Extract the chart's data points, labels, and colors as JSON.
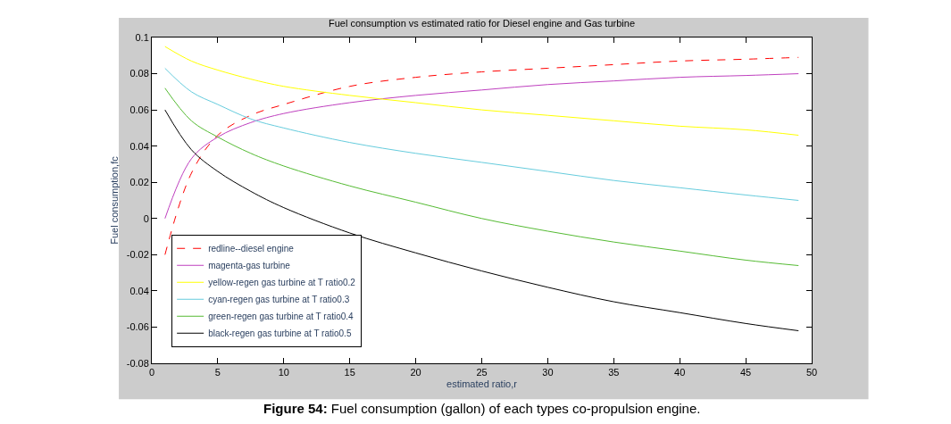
{
  "chart_data": {
    "type": "line",
    "title": "Fuel consumption vs estimated ratio for Diesel engine and Gas turbine",
    "xlabel": "estimated ratio,r",
    "ylabel": "Fuel consumption,fc",
    "x": [
      1,
      3,
      5,
      7.5,
      10,
      15,
      20,
      25,
      30,
      35,
      40,
      45,
      49
    ],
    "series": [
      {
        "name": "redline--diesel engine",
        "color": "#ff0000",
        "line_style": "dashed",
        "values": [
          -0.02,
          0.025,
          0.046,
          0.057,
          0.063,
          0.073,
          0.078,
          0.081,
          0.083,
          0.085,
          0.087,
          0.088,
          0.089
        ]
      },
      {
        "name": "magenta-gas turbine",
        "color": "#bf40bf",
        "line_style": "solid",
        "values": [
          0.0,
          0.033,
          0.045,
          0.053,
          0.058,
          0.064,
          0.068,
          0.071,
          0.074,
          0.076,
          0.078,
          0.079,
          0.08
        ]
      },
      {
        "name": "yellow-regen gas turbine at T ratio0.2",
        "color": "#ffff00",
        "line_style": "solid",
        "values": [
          0.095,
          0.087,
          0.082,
          0.077,
          0.073,
          0.068,
          0.064,
          0.06,
          0.057,
          0.054,
          0.051,
          0.049,
          0.046
        ]
      },
      {
        "name": "cyan-regen gas turbine at T ratio0.3",
        "color": "#66ccdd",
        "line_style": "solid",
        "values": [
          0.083,
          0.07,
          0.063,
          0.055,
          0.05,
          0.042,
          0.036,
          0.031,
          0.026,
          0.021,
          0.017,
          0.013,
          0.01
        ]
      },
      {
        "name": "green-regen gas turbine at T ratio0.4",
        "color": "#55bb33",
        "line_style": "solid",
        "values": [
          0.072,
          0.054,
          0.045,
          0.036,
          0.029,
          0.018,
          0.009,
          0.0,
          -0.007,
          -0.013,
          -0.018,
          -0.023,
          -0.026
        ]
      },
      {
        "name": "black-regen gas turbine at T ratio0.5",
        "color": "#000000",
        "line_style": "solid",
        "values": [
          0.06,
          0.038,
          0.026,
          0.015,
          0.006,
          -0.008,
          -0.019,
          -0.029,
          -0.038,
          -0.046,
          -0.052,
          -0.058,
          -0.062
        ]
      }
    ],
    "xlim": [
      0,
      50
    ],
    "xticks": [
      0,
      5,
      10,
      15,
      20,
      25,
      30,
      35,
      40,
      45,
      50
    ],
    "ylim": [
      -0.08,
      0.1
    ],
    "yticks": [
      -0.08,
      -0.06,
      {
        "value": -0.04,
        "label": "0.04"
      },
      -0.02,
      0,
      0.02,
      0.04,
      0.06,
      0.08,
      0.1
    ],
    "legend": "bottom left",
    "marker": "none",
    "annotations": [
      "Figure 54: Fuel consumption (gallon) of each types co-propulsion engine."
    ]
  }
}
